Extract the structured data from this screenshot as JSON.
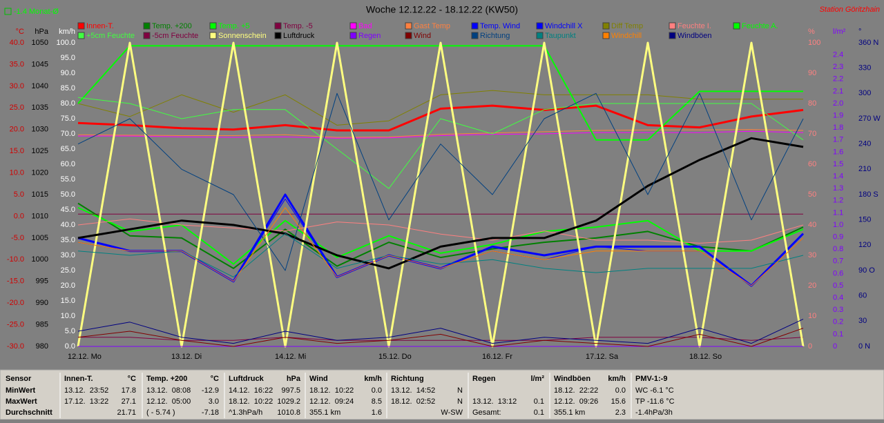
{
  "chart_data": {
    "type": "line",
    "title": "Woche 12.12.22 - 18.12.22 (KW50)",
    "annotation": "-1.4 Monat-Ø",
    "station": "Station Göritzhain",
    "x": [
      0,
      12,
      24,
      36,
      48,
      60,
      72,
      84,
      96,
      108,
      120,
      132,
      144,
      156,
      168
    ],
    "xlim": [
      0,
      168
    ],
    "xticks": [
      {
        "value": 0,
        "label": "12.12. Mo"
      },
      {
        "value": 24,
        "label": "13.12. Di"
      },
      {
        "value": 48,
        "label": "14.12. Mi"
      },
      {
        "value": 72,
        "label": "15.12. Do"
      },
      {
        "value": 96,
        "label": "16.12. Fr"
      },
      {
        "value": 120,
        "label": "17.12. Sa"
      },
      {
        "value": 144,
        "label": "18.12. So"
      }
    ],
    "axes": [
      {
        "unit": "°C",
        "side": "left",
        "color": "#d00000",
        "ylim": [
          -30,
          40
        ],
        "yticks": [
          {
            "value": 40,
            "label": "40.0"
          },
          {
            "value": 35,
            "label": "35.0"
          },
          {
            "value": 30,
            "label": "30.0"
          },
          {
            "value": 25,
            "label": "25.0"
          },
          {
            "value": 20,
            "label": "20.0"
          },
          {
            "value": 15,
            "label": "15.0"
          },
          {
            "value": 10,
            "label": "10.0"
          },
          {
            "value": 5,
            "label": "5.0"
          },
          {
            "value": 0,
            "label": "0.0"
          },
          {
            "value": -5,
            "label": "-5.0"
          },
          {
            "value": -10,
            "label": "-10.0"
          },
          {
            "value": -15,
            "label": "-15.0"
          },
          {
            "value": -20,
            "label": "-20.0"
          },
          {
            "value": -25,
            "label": "-25.0"
          },
          {
            "value": -30,
            "label": "-30.0"
          }
        ]
      },
      {
        "unit": "hPa",
        "side": "left",
        "color": "#000000",
        "ylim": [
          980,
          1050
        ],
        "yticks": [
          1050,
          1045,
          1040,
          1035,
          1030,
          1025,
          1020,
          1015,
          1010,
          1005,
          1000,
          995,
          990,
          985,
          980
        ]
      },
      {
        "unit": "km/h",
        "side": "left",
        "color": "#ffffff",
        "ylim": [
          0,
          100
        ],
        "yticks": [
          {
            "value": 100,
            "label": "100.0"
          },
          {
            "value": 95,
            "label": "95.0"
          },
          {
            "value": 90,
            "label": "90.0"
          },
          {
            "value": 85,
            "label": "85.0"
          },
          {
            "value": 80,
            "label": "80.0"
          },
          {
            "value": 75,
            "label": "75.0"
          },
          {
            "value": 70,
            "label": "70.0"
          },
          {
            "value": 65,
            "label": "65.0"
          },
          {
            "value": 60,
            "label": "60.0"
          },
          {
            "value": 55,
            "label": "55.0"
          },
          {
            "value": 50,
            "label": "50.0"
          },
          {
            "value": 45,
            "label": "45.0"
          },
          {
            "value": 40,
            "label": "40.0"
          },
          {
            "value": 35,
            "label": "35.0"
          },
          {
            "value": 30,
            "label": "30.0"
          },
          {
            "value": 25,
            "label": "25.0"
          },
          {
            "value": 20,
            "label": "20.0"
          },
          {
            "value": 15,
            "label": "15.0"
          },
          {
            "value": 10,
            "label": "10.0"
          },
          {
            "value": 5,
            "label": "5.0"
          },
          {
            "value": 0,
            "label": "0.0"
          }
        ]
      },
      {
        "unit": "%",
        "side": "right",
        "color": "#ff8080",
        "ylim": [
          0,
          100
        ],
        "yticks": [
          100,
          90,
          80,
          70,
          60,
          50,
          40,
          30,
          20,
          10,
          0
        ]
      },
      {
        "unit": "l/m²",
        "side": "right",
        "color": "#8000ff",
        "ylim": [
          0,
          2.5
        ],
        "yticks": [
          2.4,
          2.3,
          2.2,
          2.1,
          {
            "value": 2,
            "label": "2.0"
          },
          1.9,
          1.8,
          1.7,
          1.6,
          1.5,
          1.4,
          1.3,
          1.2,
          1.1,
          {
            "value": 1,
            "label": "1.0"
          },
          0.9,
          0.8,
          0.7,
          0.6,
          0.5,
          0.4,
          0.3,
          0.2,
          0.1,
          0
        ]
      },
      {
        "unit": "°",
        "side": "right",
        "color": "#000080",
        "ylim": [
          0,
          360
        ],
        "yticks": [
          {
            "value": 360,
            "label": "360 N"
          },
          330,
          300,
          {
            "value": 270,
            "label": "270 W"
          },
          240,
          210,
          {
            "value": 180,
            "label": "180 S"
          },
          150,
          120,
          {
            "value": 90,
            "label": "90 O"
          },
          60,
          30,
          {
            "value": 0,
            "label": "0 N"
          }
        ]
      }
    ],
    "series": [
      {
        "name": "Innen-T.",
        "color": "#ff0000",
        "axis": 0,
        "values": [
          21.5,
          21,
          20.3,
          20,
          21,
          19.8,
          19.8,
          24.8,
          25.5,
          24.5,
          25.5,
          21,
          20.5,
          23,
          24.5
        ]
      },
      {
        "name": "Temp. +200",
        "color": "#008000",
        "axis": 0,
        "values": [
          3,
          -4.5,
          -5,
          -12,
          -3,
          -11.5,
          -6,
          -9.5,
          -7.5,
          -6,
          -5,
          -3.5,
          -7,
          -8,
          -2.5
        ]
      },
      {
        "name": "Temp. +5",
        "color": "#00ff00",
        "axis": 0,
        "values": [
          2,
          -3.5,
          -2,
          -11,
          -1,
          -9.5,
          -4.5,
          -8.5,
          -6.5,
          -3.5,
          -2.5,
          -1,
          -8,
          -8,
          -3
        ]
      },
      {
        "name": "Temp. -5",
        "color": "#800040",
        "axis": 0,
        "values": [
          0.5,
          0.5,
          0.5,
          0.5,
          0.5,
          0.5,
          0.5,
          0.5,
          0.5,
          0.5,
          0.5,
          0.5,
          0.5,
          0.5,
          0.5
        ]
      },
      {
        "name": "Bad",
        "color": "#ff00ff",
        "axis": 0,
        "values": [
          18.5,
          18.5,
          18.3,
          18.2,
          18.3,
          18,
          18.1,
          18.6,
          18.9,
          19,
          19.3,
          19.3,
          19.3,
          19.6,
          19.3
        ]
      },
      {
        "name": "Gast Temp",
        "color": "#ff8040",
        "axis": 0,
        "values": [
          18.8,
          18.7,
          18.6,
          18.6,
          18.8,
          18.2,
          18.3,
          18.9,
          19.2,
          19.5,
          19.8,
          19.9,
          19.9,
          20,
          19.8
        ]
      },
      {
        "name": "Temp. Wind",
        "color": "#0000ff",
        "axis": 0,
        "values": [
          -5,
          -8,
          -8,
          -15,
          5,
          -14,
          -9,
          -12,
          -7,
          -9,
          -7,
          -7,
          -7,
          -16,
          -4
        ]
      },
      {
        "name": "Windchill X",
        "color": "#0000ff",
        "axis": 0,
        "values": [
          -6,
          -8,
          -8,
          -15,
          4,
          -14,
          -9,
          -12,
          -8,
          -10,
          -7,
          -8,
          -8,
          -16,
          -5
        ]
      },
      {
        "name": "Diff Temp",
        "color": "#808000",
        "axis": 0,
        "values": [
          26,
          23,
          28,
          24,
          28,
          21,
          22,
          28,
          29,
          28,
          28,
          28,
          27,
          27,
          27
        ]
      },
      {
        "name": "Feuchte I.",
        "color": "#ff8080",
        "axis": 3,
        "values": [
          40,
          42,
          40,
          39,
          38,
          41,
          40,
          37,
          35,
          38,
          35,
          35,
          34,
          35,
          40
        ]
      },
      {
        "name": "Feuchte A.",
        "color": "#00ff00",
        "axis": 3,
        "values": [
          80,
          99,
          99,
          99,
          99,
          99,
          99,
          99,
          99,
          99,
          68,
          68,
          84,
          84,
          84
        ]
      },
      {
        "name": "+5cm Feuchte",
        "color": "#40ff40",
        "axis": 3,
        "values": [
          82,
          80,
          75,
          78,
          78,
          65,
          52,
          75,
          70,
          78,
          80,
          80,
          80,
          80,
          68
        ]
      },
      {
        "name": "-5cm Feuchte",
        "color": "#800040",
        "axis": 3,
        "values": [
          3,
          3,
          2,
          2,
          3,
          2,
          2,
          2,
          2,
          2,
          3,
          3,
          3,
          2,
          3
        ]
      },
      {
        "name": "Sonnenschein",
        "color": "#ffff80",
        "axis": 3,
        "values": [
          0,
          100,
          0,
          100,
          0,
          100,
          0,
          100,
          0,
          100,
          0,
          100,
          0,
          100,
          0
        ]
      },
      {
        "name": "Luftdruck",
        "color": "#000000",
        "axis": 1,
        "values": [
          1005,
          1007,
          1009,
          1008,
          1006,
          1001,
          998,
          1003,
          1005,
          1005,
          1009,
          1017,
          1023,
          1028,
          1026
        ]
      },
      {
        "name": "Regen",
        "color": "#8000ff",
        "axis": 4,
        "values": [
          0,
          0,
          0,
          0,
          0,
          0,
          0,
          0,
          0,
          0,
          0,
          0,
          0,
          0,
          0
        ]
      },
      {
        "name": "Wind",
        "color": "#800000",
        "axis": 2,
        "values": [
          3,
          5,
          2,
          0,
          3,
          1,
          2,
          4,
          0,
          2,
          1,
          0,
          4,
          0,
          6
        ]
      },
      {
        "name": "Richtung",
        "color": "#004080",
        "axis": 5,
        "values": [
          240,
          270,
          210,
          180,
          90,
          300,
          150,
          240,
          180,
          270,
          300,
          180,
          300,
          150,
          270
        ]
      },
      {
        "name": "Taupunkt",
        "color": "#008080",
        "axis": 0,
        "values": [
          -8,
          -9,
          -8,
          -14,
          -4,
          -12,
          -9,
          -11,
          -10,
          -12,
          -13,
          -12,
          -12,
          -12,
          -9
        ]
      },
      {
        "name": "Windchill",
        "color": "#ff8000",
        "axis": 0,
        "values": [
          -6,
          -8,
          -8,
          -15,
          2,
          -14,
          -9,
          -12,
          -8,
          -10,
          -8,
          -8,
          -8,
          -16,
          -5
        ]
      },
      {
        "name": "Windböen",
        "color": "#000080",
        "axis": 2,
        "values": [
          5,
          8,
          3,
          1,
          5,
          2,
          3,
          6,
          1,
          3,
          2,
          1,
          6,
          1,
          9
        ]
      }
    ]
  },
  "stats": {
    "columns": [
      {
        "title": "Sensor",
        "rows": [
          [
            "MinWert"
          ],
          [
            "MaxWert"
          ],
          [
            "Durchschnitt"
          ]
        ]
      },
      {
        "title": "Innen-T.",
        "unit": "°C",
        "rows": [
          [
            "13.12.  23:52",
            "17.8"
          ],
          [
            "17.12.  13:22",
            "27.1"
          ],
          [
            "21.71"
          ]
        ]
      },
      {
        "title": "Temp. +200",
        "unit": "°C",
        "rows": [
          [
            "13.12.  08:08",
            "-12.9"
          ],
          [
            "12.12.  05:00",
            "3.0"
          ],
          [
            "( - 5.74 )",
            "-7.18"
          ]
        ]
      },
      {
        "title": "Luftdruck",
        "unit": "hPa",
        "rows": [
          [
            "14.12.  16:22",
            "997.5"
          ],
          [
            "18.12.  10:22",
            "1029.2"
          ],
          [
            "^1.3hPa/h",
            "1010.8"
          ]
        ]
      },
      {
        "title": "Wind",
        "unit": "km/h",
        "rows": [
          [
            "18.12.  10:22",
            "0.0"
          ],
          [
            "12.12.  09:24",
            "8.5"
          ],
          [
            "355.1 km",
            "1.6"
          ]
        ]
      },
      {
        "title": "Richtung",
        "rows": [
          [
            "13.12.  14:52",
            "N"
          ],
          [
            "18.12.  02:52",
            "N"
          ],
          [
            "W-SW"
          ]
        ]
      },
      {
        "title": "Regen",
        "unit": "l/m²",
        "rows": [
          [],
          [
            "13.12.  13:12",
            "0.1"
          ],
          [
            "Gesamt:",
            "0.1"
          ]
        ]
      },
      {
        "title": "Windböen",
        "unit": "km/h",
        "rows": [
          [
            "18.12.  22:22",
            "0.0"
          ],
          [
            "12.12.  09:26",
            "15.6"
          ],
          [
            "355.1 km",
            "2.3"
          ]
        ]
      },
      {
        "title": "PMV-1:-9",
        "rows": [
          [
            "WC -6.1 °C"
          ],
          [
            "TP -11.6 °C"
          ],
          [
            "-1.4hPa/3h"
          ]
        ]
      }
    ]
  }
}
